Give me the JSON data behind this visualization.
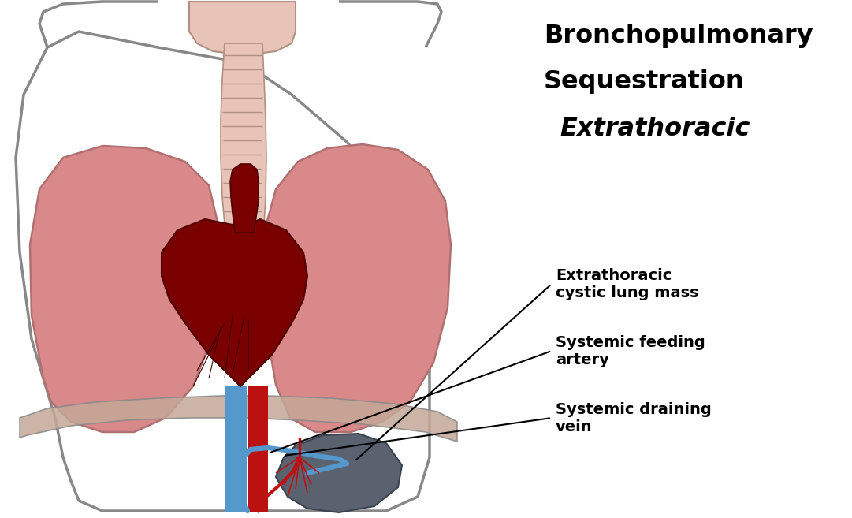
{
  "title_line1": "Bronchopulmonary",
  "title_line2": "Sequestration",
  "title_line3": "Extrathoracic",
  "label1": "Extrathoracic\ncystic lung mass",
  "label2": "Systemic feeding\nartery",
  "label3": "Systemic draining\nvein",
  "bg_color": "#ffffff",
  "body_outline_color": "#888888",
  "lung_fill": "#d9898a",
  "lung_outline": "#b07070",
  "heart_fill": "#7a0000",
  "heart_outline": "#500000",
  "trachea_fill": "#e8c4b8",
  "trachea_outline": "#b09080",
  "aorta_color": "#bb1111",
  "vein_color": "#5599cc",
  "diaphragm_fill": "#c4a898",
  "sequestration_fill": "#5a6270",
  "sequestration_outline": "#3a4250",
  "vessel_red": "#bb1111",
  "vessel_blue": "#5599cc",
  "fig_width": 10.81,
  "fig_height": 6.57,
  "fig_dpi": 100
}
